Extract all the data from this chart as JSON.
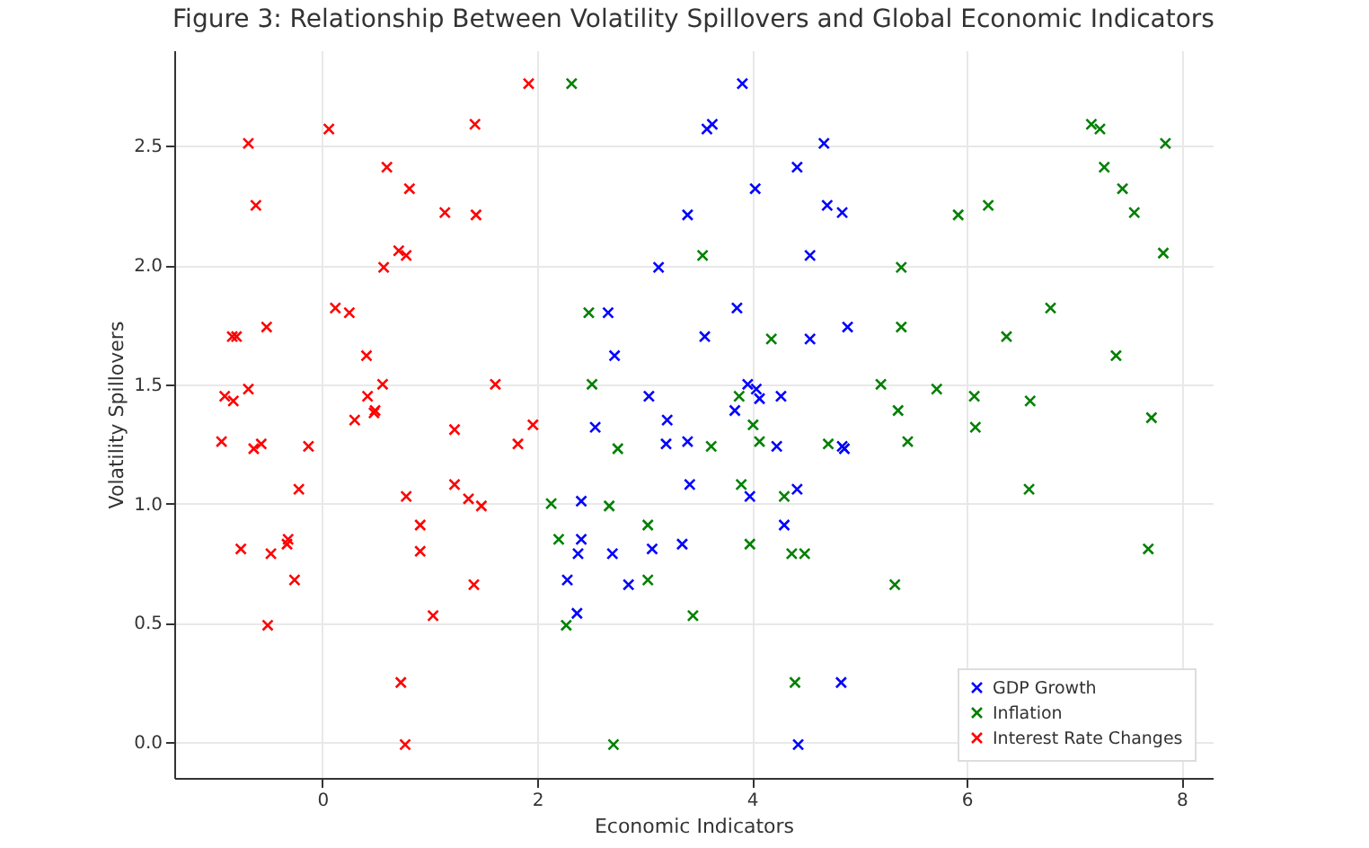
{
  "chart_data": {
    "type": "scatter",
    "title": "Figure 3: Relationship Between Volatility Spillovers and Global Economic Indicators",
    "xlabel": "Economic Indicators",
    "ylabel": "Volatility Spillovers",
    "xlim": [
      -1.38,
      8.29
    ],
    "ylim": [
      -0.15,
      2.9
    ],
    "xticks": [
      0,
      2,
      4,
      6,
      8
    ],
    "yticks": [
      {
        "value": 0,
        "label": "0.0"
      },
      {
        "value": 0.5,
        "label": "0.5"
      },
      {
        "value": 1,
        "label": "1.0"
      },
      {
        "value": 1.5,
        "label": "1.5"
      },
      {
        "value": 2,
        "label": "2.0"
      },
      {
        "value": 2.5,
        "label": "2.5"
      }
    ],
    "grid": true,
    "legend": "bottom right",
    "marker": "cross",
    "series": [
      {
        "name": "GDP Growth",
        "color": "#0000ff",
        "x": [
          3.91,
          3.63,
          3.58,
          4.67,
          4.42,
          4.03,
          4.7,
          4.84,
          3.4,
          4.54,
          3.13,
          3.86,
          2.66,
          3.56,
          4.54,
          4.89,
          2.72,
          3.04,
          3.96,
          4.04,
          4.07,
          4.27,
          3.84,
          3.21,
          2.54,
          3.2,
          3.4,
          4.23,
          4.84,
          4.86,
          3.42,
          3.98,
          4.42,
          2.41,
          4.3,
          2.41,
          2.38,
          2.7,
          3.07,
          3.35,
          2.28,
          2.85,
          2.37,
          4.83,
          4.43
        ],
        "values": [
          2.76,
          2.59,
          2.57,
          2.51,
          2.41,
          2.32,
          2.25,
          2.22,
          2.21,
          2.04,
          1.99,
          1.82,
          1.8,
          1.7,
          1.69,
          1.74,
          1.62,
          1.45,
          1.5,
          1.48,
          1.44,
          1.45,
          1.39,
          1.35,
          1.32,
          1.25,
          1.26,
          1.24,
          1.24,
          1.23,
          1.08,
          1.03,
          1.06,
          1.01,
          0.91,
          0.85,
          0.79,
          0.79,
          0.81,
          0.83,
          0.68,
          0.66,
          0.54,
          0.25,
          -0.01
        ]
      },
      {
        "name": "Inflation",
        "color": "#008000",
        "x": [
          2.32,
          3.54,
          2.48,
          4.18,
          2.51,
          3.88,
          4.01,
          2.75,
          3.62,
          4.07,
          4.71,
          3.9,
          4.3,
          2.13,
          2.67,
          3.03,
          2.2,
          3.98,
          4.37,
          4.49,
          3.03,
          2.27,
          3.45,
          4.4,
          2.71,
          7.16,
          7.24,
          7.85,
          7.28,
          7.45,
          7.56,
          5.92,
          6.2,
          7.83,
          5.39,
          6.78,
          5.39,
          6.37,
          7.39,
          5.2,
          5.72,
          6.07,
          6.59,
          5.36,
          5.45,
          6.08,
          7.72,
          6.58,
          7.69,
          5.33
        ],
        "values": [
          2.76,
          2.04,
          1.8,
          1.69,
          1.5,
          1.45,
          1.33,
          1.23,
          1.24,
          1.26,
          1.25,
          1.08,
          1.03,
          1.0,
          0.99,
          0.91,
          0.85,
          0.83,
          0.79,
          0.79,
          0.68,
          0.49,
          0.53,
          0.25,
          -0.01,
          2.59,
          2.57,
          2.51,
          2.41,
          2.32,
          2.22,
          2.21,
          2.25,
          2.05,
          1.99,
          1.82,
          1.74,
          1.7,
          1.62,
          1.5,
          1.48,
          1.45,
          1.43,
          1.39,
          1.26,
          1.32,
          1.36,
          1.06,
          0.81,
          0.66
        ]
      },
      {
        "name": "Interest Rate Changes",
        "color": "#ff0000",
        "x": [
          -0.69,
          0.06,
          1.92,
          1.42,
          -0.62,
          0.6,
          0.81,
          1.14,
          1.43,
          0.57,
          0.71,
          0.78,
          0.12,
          0.25,
          -0.8,
          -0.84,
          -0.52,
          0.41,
          1.61,
          0.56,
          0.42,
          -0.91,
          -0.83,
          -0.69,
          0.49,
          0.3,
          0.48,
          1.23,
          1.96,
          1.82,
          -0.94,
          -0.64,
          -0.57,
          -0.13,
          -0.22,
          0.78,
          1.23,
          1.36,
          1.48,
          0.91,
          0.91,
          -0.76,
          -0.48,
          -0.32,
          -0.33,
          -0.26,
          1.41,
          1.03,
          -0.51,
          0.73,
          0.77
        ],
        "values": [
          2.51,
          2.57,
          2.76,
          2.59,
          2.25,
          2.41,
          2.32,
          2.22,
          2.21,
          1.99,
          2.06,
          2.04,
          1.82,
          1.8,
          1.7,
          1.7,
          1.74,
          1.62,
          1.5,
          1.5,
          1.45,
          1.45,
          1.43,
          1.48,
          1.39,
          1.35,
          1.38,
          1.31,
          1.33,
          1.25,
          1.26,
          1.23,
          1.25,
          1.24,
          1.06,
          1.03,
          1.08,
          1.02,
          0.99,
          0.91,
          0.8,
          0.81,
          0.79,
          0.85,
          0.83,
          0.68,
          0.66,
          0.53,
          0.49,
          0.25,
          -0.01
        ]
      }
    ]
  }
}
